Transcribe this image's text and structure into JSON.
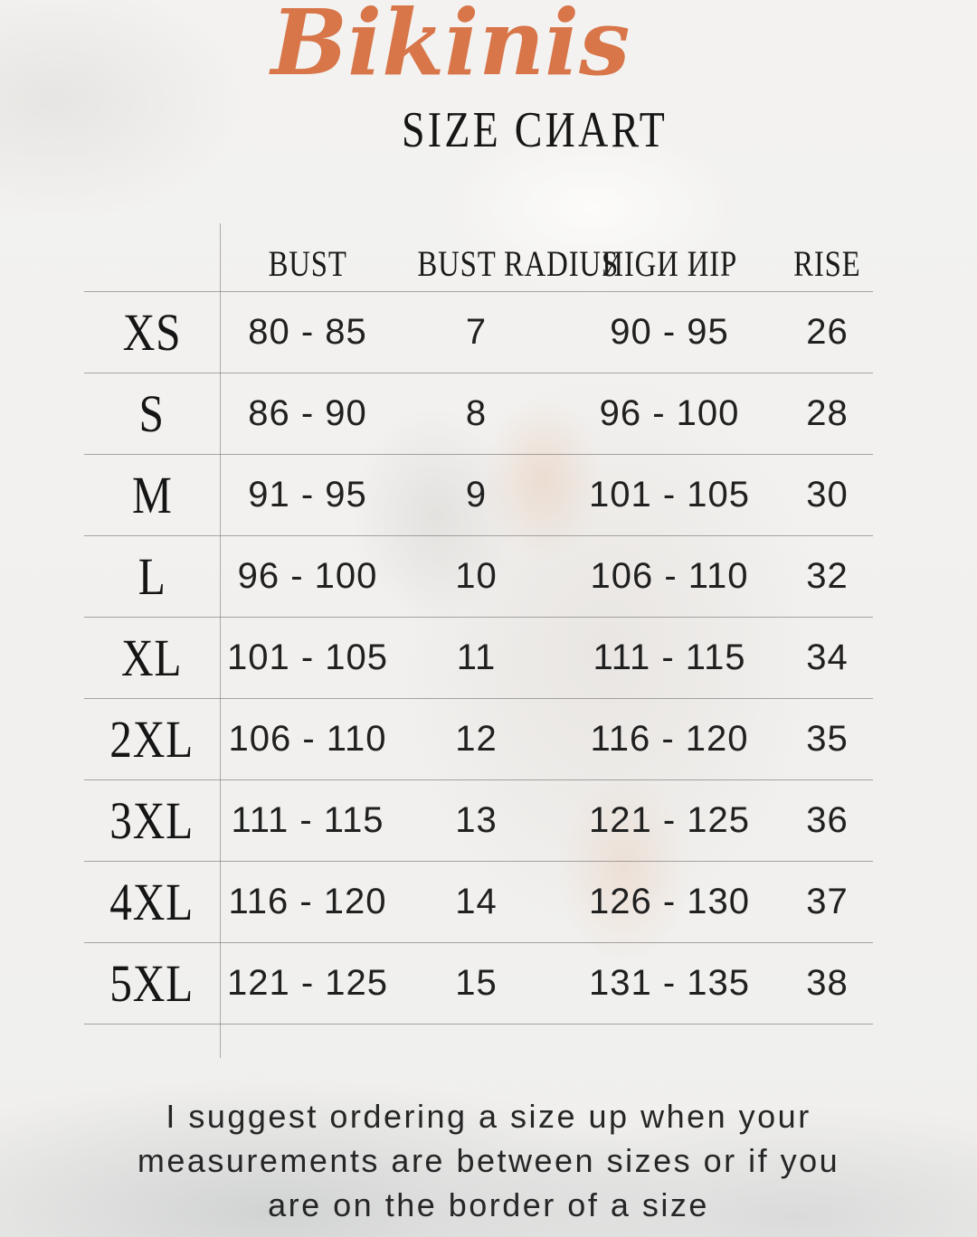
{
  "page": {
    "title_script": "Bikinis",
    "subtitle": "SIZE CHART",
    "subtitle_display": "SIZE CИART",
    "note": "I suggest ordering a size up when your measurements are between sizes or if you are on the border of a size",
    "note_lines": [
      "I suggest ordering a size up when your",
      "measurements are between sizes or if you",
      "are on the border of a size"
    ]
  },
  "colors": {
    "accent_orange": "#d8764a",
    "text": "#1d1d1d",
    "background": "#f2f1ef",
    "table_line": "#777777"
  },
  "size_chart": {
    "columns": [
      {
        "id": "bust",
        "label": "BUST",
        "display": "BUST"
      },
      {
        "id": "bust_radius",
        "label": "BUST RADIUS",
        "display": "BUST RADIUS"
      },
      {
        "id": "high_hip",
        "label": "HIGH HIP",
        "display": "ИIGИ ИIP"
      },
      {
        "id": "rise",
        "label": "RISE",
        "display": "RISE"
      }
    ],
    "rows": [
      {
        "size": "XS",
        "bust": "80 - 85",
        "bust_radius": "7",
        "high_hip": "90 - 95",
        "rise": "26"
      },
      {
        "size": "S",
        "bust": "86 - 90",
        "bust_radius": "8",
        "high_hip": "96 - 100",
        "rise": "28"
      },
      {
        "size": "M",
        "bust": "91 - 95",
        "bust_radius": "9",
        "high_hip": "101 - 105",
        "rise": "30"
      },
      {
        "size": "L",
        "bust": "96 - 100",
        "bust_radius": "10",
        "high_hip": "106 - 110",
        "rise": "32"
      },
      {
        "size": "XL",
        "bust": "101 - 105",
        "bust_radius": "11",
        "high_hip": "111 - 115",
        "rise": "34"
      },
      {
        "size": "2XL",
        "bust": "106 - 110",
        "bust_radius": "12",
        "high_hip": "116 - 120",
        "rise": "35"
      },
      {
        "size": "3XL",
        "bust": "111 - 115",
        "bust_radius": "13",
        "high_hip": "121 - 125",
        "rise": "36"
      },
      {
        "size": "4XL",
        "bust": "116 - 120",
        "bust_radius": "14",
        "high_hip": "126 - 130",
        "rise": "37"
      },
      {
        "size": "5XL",
        "bust": "121 - 125",
        "bust_radius": "15",
        "high_hip": "131 - 135",
        "rise": "38"
      }
    ]
  }
}
